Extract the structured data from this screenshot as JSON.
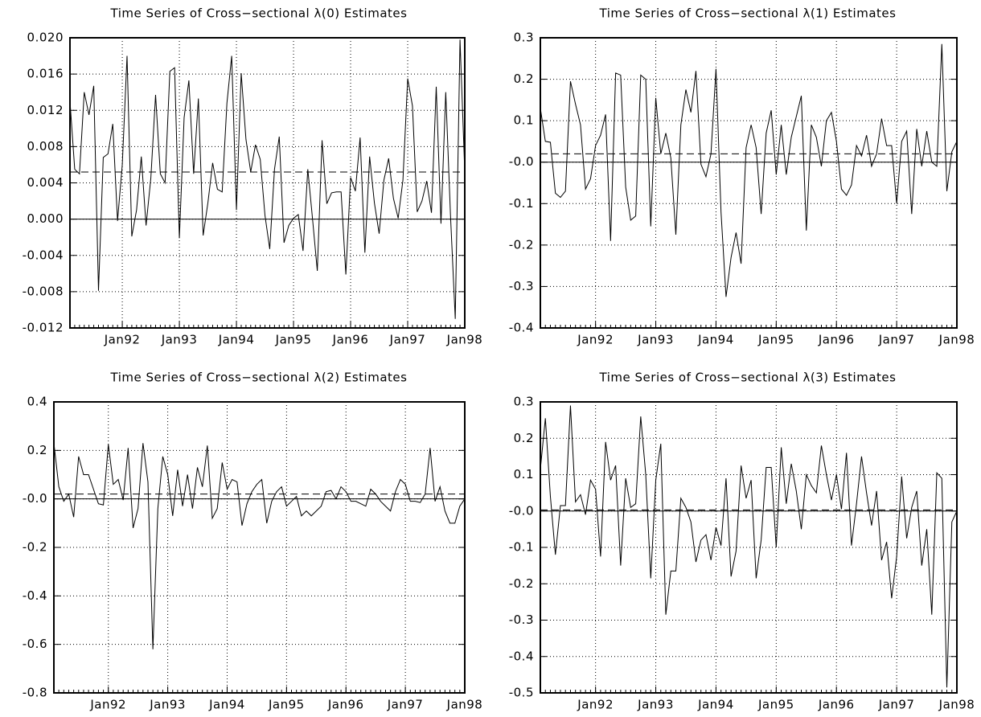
{
  "chart_data": [
    {
      "type": "line",
      "title": "Time Series of Cross−sectional λ(0) Estimates",
      "x": [
        1,
        2,
        3,
        4,
        5,
        6,
        7,
        8,
        9,
        10,
        11,
        12,
        13,
        14,
        15,
        16,
        17,
        18,
        19,
        20,
        21,
        22,
        23,
        24,
        25,
        26,
        27,
        28,
        29,
        30,
        31,
        32,
        33,
        34,
        35,
        36,
        37,
        38,
        39,
        40,
        41,
        42,
        43,
        44,
        45,
        46,
        47,
        48,
        49,
        50,
        51,
        52,
        53,
        54,
        55,
        56,
        57,
        58,
        59,
        60,
        61,
        62,
        63,
        64,
        65,
        66,
        67,
        68,
        69,
        70,
        71,
        72,
        73,
        74,
        75,
        76,
        77,
        78,
        79,
        80,
        81,
        82,
        83,
        84
      ],
      "values": [
        0.013,
        0.0055,
        0.005,
        0.014,
        0.0115,
        0.0147,
        -0.0079,
        0.0068,
        0.0072,
        0.0105,
        -0.0002,
        0.006,
        0.018,
        -0.0019,
        0.001,
        0.0069,
        -0.0007,
        0.0045,
        0.0137,
        0.005,
        0.004,
        0.0163,
        0.0167,
        -0.0021,
        0.0112,
        0.0153,
        0.005,
        0.0133,
        -0.0018,
        0.0018,
        0.0062,
        0.0033,
        0.003,
        0.0128,
        0.018,
        0.001,
        0.0161,
        0.0088,
        0.0052,
        0.0082,
        0.0066,
        0.0004,
        -0.0033,
        0.0055,
        0.0091,
        -0.0026,
        -0.0007,
        0.0001,
        0.0005,
        -0.0035,
        0.0055,
        0.0,
        -0.0057,
        0.0087,
        0.0017,
        0.0029,
        0.003,
        0.003,
        -0.0061,
        0.0046,
        0.0031,
        0.009,
        -0.0037,
        0.0069,
        0.0018,
        -0.0016,
        0.0043,
        0.0067,
        0.0023,
        0.0001,
        0.0043,
        0.0155,
        0.0125,
        0.0008,
        0.002,
        0.0042,
        0.0007,
        0.0146,
        -0.0005,
        0.014,
        0.0004,
        -0.011,
        0.0198,
        0.0052
      ],
      "mean": 0.0052,
      "color": "#000000",
      "xlim": [
        1,
        84
      ],
      "xticks": [
        {
          "value": 12,
          "label": "Jan92"
        },
        {
          "value": 24,
          "label": "Jan93"
        },
        {
          "value": 36,
          "label": "Jan94"
        },
        {
          "value": 48,
          "label": "Jan95"
        },
        {
          "value": 60,
          "label": "Jan96"
        },
        {
          "value": 72,
          "label": "Jan97"
        },
        {
          "value": 84,
          "label": "Jan98"
        }
      ],
      "ylim": [
        -0.012,
        0.02
      ],
      "yticks": [
        {
          "value": -0.012,
          "label": "-0.012"
        },
        {
          "value": -0.008,
          "label": "-0.008"
        },
        {
          "value": -0.004,
          "label": "-0.004"
        },
        {
          "value": 0,
          "label": "0.000"
        },
        {
          "value": 0.004,
          "label": "0.004"
        },
        {
          "value": 0.008,
          "label": "0.008"
        },
        {
          "value": 0.012,
          "label": "0.012"
        },
        {
          "value": 0.016,
          "label": "0.016"
        },
        {
          "value": 0.02,
          "label": "0.020"
        }
      ],
      "grid": true
    },
    {
      "type": "line",
      "title": "Time Series of Cross−sectional λ(1) Estimates",
      "x": [
        1,
        2,
        3,
        4,
        5,
        6,
        7,
        8,
        9,
        10,
        11,
        12,
        13,
        14,
        15,
        16,
        17,
        18,
        19,
        20,
        21,
        22,
        23,
        24,
        25,
        26,
        27,
        28,
        29,
        30,
        31,
        32,
        33,
        34,
        35,
        36,
        37,
        38,
        39,
        40,
        41,
        42,
        43,
        44,
        45,
        46,
        47,
        48,
        49,
        50,
        51,
        52,
        53,
        54,
        55,
        56,
        57,
        58,
        59,
        60,
        61,
        62,
        63,
        64,
        65,
        66,
        67,
        68,
        69,
        70,
        71,
        72,
        73,
        74,
        75,
        76,
        77,
        78,
        79,
        80,
        81,
        82,
        83,
        84
      ],
      "values": [
        0.13,
        0.05,
        0.048,
        -0.075,
        -0.085,
        -0.07,
        0.195,
        0.14,
        0.09,
        -0.065,
        -0.04,
        0.04,
        0.065,
        0.115,
        -0.19,
        0.215,
        0.21,
        -0.06,
        -0.14,
        -0.13,
        0.21,
        0.2,
        -0.155,
        0.155,
        0.02,
        0.07,
        0.01,
        -0.175,
        0.09,
        0.175,
        0.12,
        0.22,
        -0.005,
        -0.035,
        0.02,
        0.225,
        -0.12,
        -0.325,
        -0.23,
        -0.17,
        -0.245,
        0.035,
        0.09,
        0.035,
        -0.125,
        0.07,
        0.125,
        -0.03,
        0.09,
        -0.03,
        0.06,
        0.11,
        0.16,
        -0.165,
        0.09,
        0.06,
        -0.01,
        0.1,
        0.12,
        0.05,
        -0.065,
        -0.08,
        -0.055,
        0.04,
        0.015,
        0.065,
        -0.01,
        0.02,
        0.105,
        0.04,
        0.04,
        -0.1,
        0.05,
        0.075,
        -0.125,
        0.08,
        -0.01,
        0.075,
        0.0,
        -0.01,
        0.285,
        -0.07,
        0.025,
        0.05
      ],
      "mean": 0.02,
      "color": "#000000",
      "xlim": [
        1,
        84
      ],
      "xticks": [
        {
          "value": 12,
          "label": "Jan92"
        },
        {
          "value": 24,
          "label": "Jan93"
        },
        {
          "value": 36,
          "label": "Jan94"
        },
        {
          "value": 48,
          "label": "Jan95"
        },
        {
          "value": 60,
          "label": "Jan96"
        },
        {
          "value": 72,
          "label": "Jan97"
        },
        {
          "value": 84,
          "label": "Jan98"
        }
      ],
      "ylim": [
        -0.4,
        0.3
      ],
      "yticks": [
        -0.4,
        -0.3,
        -0.2,
        -0.1,
        {
          "value": 0,
          "label": "-0.0"
        },
        0.1,
        0.2,
        0.3
      ],
      "grid": true
    },
    {
      "type": "line",
      "title": "Time Series of Cross−sectional λ(2) Estimates",
      "x": [
        1,
        2,
        3,
        4,
        5,
        6,
        7,
        8,
        9,
        10,
        11,
        12,
        13,
        14,
        15,
        16,
        17,
        18,
        19,
        20,
        21,
        22,
        23,
        24,
        25,
        26,
        27,
        28,
        29,
        30,
        31,
        32,
        33,
        34,
        35,
        36,
        37,
        38,
        39,
        40,
        41,
        42,
        43,
        44,
        45,
        46,
        47,
        48,
        49,
        50,
        51,
        52,
        53,
        54,
        55,
        56,
        57,
        58,
        59,
        60,
        61,
        62,
        63,
        64,
        65,
        66,
        67,
        68,
        69,
        70,
        71,
        72,
        73,
        74,
        75,
        76,
        77,
        78,
        79,
        80,
        81,
        82,
        83,
        84
      ],
      "values": [
        0.23,
        0.05,
        -0.01,
        0.02,
        -0.075,
        0.175,
        0.1,
        0.1,
        0.04,
        -0.02,
        -0.025,
        0.225,
        0.06,
        0.08,
        -0.005,
        0.21,
        -0.12,
        -0.04,
        0.23,
        0.07,
        -0.62,
        -0.04,
        0.175,
        0.1,
        -0.07,
        0.12,
        -0.03,
        0.1,
        -0.04,
        0.13,
        0.05,
        0.22,
        -0.08,
        -0.04,
        0.15,
        0.04,
        0.08,
        0.07,
        -0.11,
        -0.02,
        0.03,
        0.06,
        0.08,
        -0.1,
        -0.01,
        0.03,
        0.05,
        -0.03,
        -0.01,
        0.01,
        -0.07,
        -0.05,
        -0.07,
        -0.05,
        -0.03,
        0.03,
        0.035,
        0.0,
        0.05,
        0.03,
        -0.01,
        -0.01,
        -0.02,
        -0.03,
        0.04,
        0.02,
        -0.01,
        -0.03,
        -0.05,
        0.03,
        0.08,
        0.06,
        -0.01,
        -0.01,
        -0.015,
        0.02,
        0.21,
        -0.01,
        0.05,
        -0.05,
        -0.1,
        -0.1,
        -0.03,
        0.0
      ],
      "mean": 0.02,
      "color": "#000000",
      "xlim": [
        1,
        84
      ],
      "xticks": [
        {
          "value": 12,
          "label": "Jan92"
        },
        {
          "value": 24,
          "label": "Jan93"
        },
        {
          "value": 36,
          "label": "Jan94"
        },
        {
          "value": 48,
          "label": "Jan95"
        },
        {
          "value": 60,
          "label": "Jan96"
        },
        {
          "value": 72,
          "label": "Jan97"
        },
        {
          "value": 84,
          "label": "Jan98"
        }
      ],
      "ylim": [
        -0.8,
        0.4
      ],
      "yticks": [
        -0.8,
        -0.6,
        -0.4,
        -0.2,
        {
          "value": 0,
          "label": "-0.0"
        },
        0.2,
        0.4
      ],
      "grid": true
    },
    {
      "type": "line",
      "title": "Time Series of Cross−sectional λ(3) Estimates",
      "x": [
        1,
        2,
        3,
        4,
        5,
        6,
        7,
        8,
        9,
        10,
        11,
        12,
        13,
        14,
        15,
        16,
        17,
        18,
        19,
        20,
        21,
        22,
        23,
        24,
        25,
        26,
        27,
        28,
        29,
        30,
        31,
        32,
        33,
        34,
        35,
        36,
        37,
        38,
        39,
        40,
        41,
        42,
        43,
        44,
        45,
        46,
        47,
        48,
        49,
        50,
        51,
        52,
        53,
        54,
        55,
        56,
        57,
        58,
        59,
        60,
        61,
        62,
        63,
        64,
        65,
        66,
        67,
        68,
        69,
        70,
        71,
        72,
        73,
        74,
        75,
        76,
        77,
        78,
        79,
        80,
        81,
        82,
        83,
        84
      ],
      "values": [
        0.115,
        0.255,
        0.04,
        -0.12,
        0.015,
        0.015,
        0.29,
        0.025,
        0.045,
        -0.01,
        0.085,
        0.06,
        -0.125,
        0.19,
        0.085,
        0.125,
        -0.15,
        0.09,
        0.01,
        0.02,
        0.26,
        0.1,
        -0.185,
        0.085,
        0.185,
        -0.285,
        -0.165,
        -0.165,
        0.035,
        0.01,
        -0.03,
        -0.14,
        -0.08,
        -0.065,
        -0.135,
        -0.045,
        -0.095,
        0.09,
        -0.18,
        -0.11,
        0.125,
        0.035,
        0.085,
        -0.185,
        -0.08,
        0.12,
        0.12,
        -0.1,
        0.175,
        0.02,
        0.13,
        0.055,
        -0.05,
        0.1,
        0.07,
        0.05,
        0.18,
        0.1,
        0.03,
        0.1,
        0.005,
        0.16,
        -0.095,
        0.02,
        0.15,
        0.05,
        -0.04,
        0.055,
        -0.135,
        -0.085,
        -0.24,
        -0.125,
        0.095,
        -0.075,
        0.01,
        0.055,
        -0.15,
        -0.05,
        -0.285,
        0.105,
        0.09,
        -0.485,
        -0.03,
        0.0
      ],
      "mean": 0.003,
      "color": "#000000",
      "xlim": [
        1,
        84
      ],
      "xticks": [
        {
          "value": 12,
          "label": "Jan92"
        },
        {
          "value": 24,
          "label": "Jan93"
        },
        {
          "value": 36,
          "label": "Jan94"
        },
        {
          "value": 48,
          "label": "Jan95"
        },
        {
          "value": 60,
          "label": "Jan96"
        },
        {
          "value": 72,
          "label": "Jan97"
        },
        {
          "value": 84,
          "label": "Jan98"
        }
      ],
      "ylim": [
        -0.5,
        0.3
      ],
      "yticks": [
        -0.5,
        -0.4,
        -0.3,
        -0.2,
        -0.1,
        {
          "value": 0,
          "label": "-0.0"
        },
        0.1,
        0.2,
        0.3
      ],
      "grid": true
    }
  ]
}
